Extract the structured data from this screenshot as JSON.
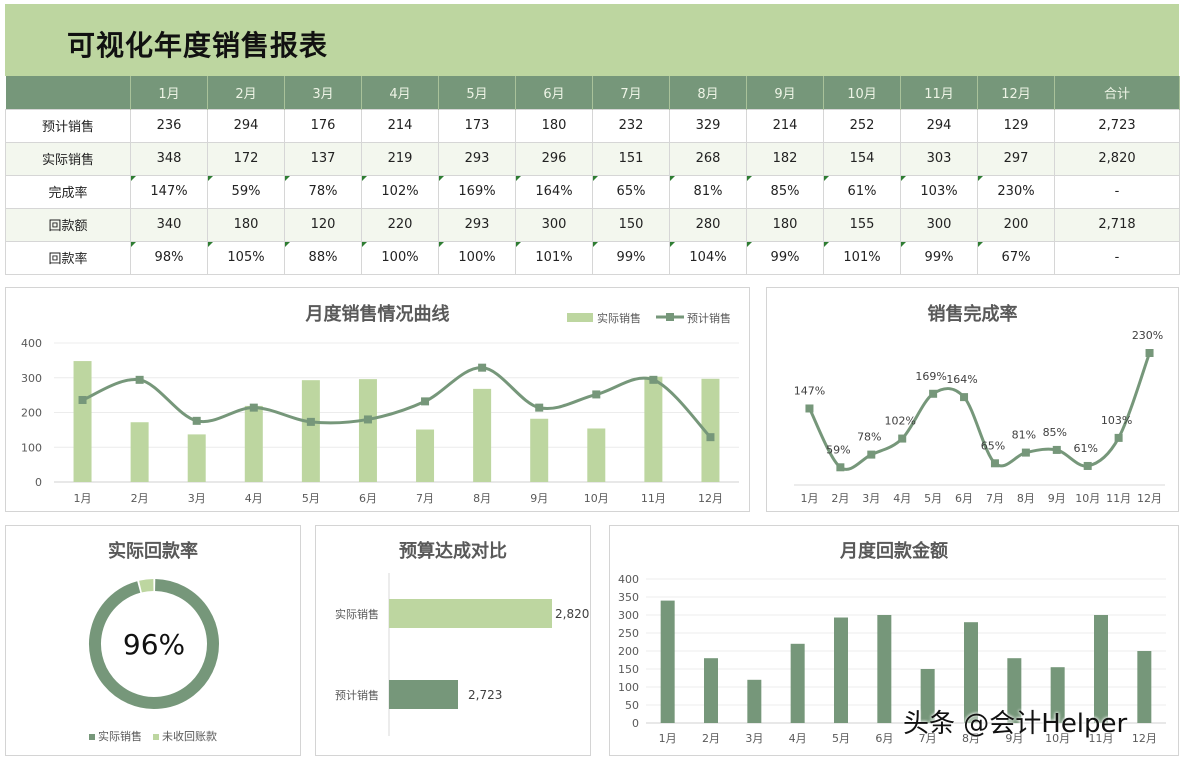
{
  "header": {
    "title": "可视化年度销售报表"
  },
  "table": {
    "columns": [
      "",
      "1月",
      "2月",
      "3月",
      "4月",
      "5月",
      "6月",
      "7月",
      "8月",
      "9月",
      "10月",
      "11月",
      "12月",
      "合计"
    ],
    "rows": [
      {
        "label": "预计销售",
        "values": [
          "236",
          "294",
          "176",
          "214",
          "173",
          "180",
          "232",
          "329",
          "214",
          "252",
          "294",
          "129"
        ],
        "total": "2,723",
        "flag": false
      },
      {
        "label": "实际销售",
        "values": [
          "348",
          "172",
          "137",
          "219",
          "293",
          "296",
          "151",
          "268",
          "182",
          "154",
          "303",
          "297"
        ],
        "total": "2,820",
        "flag": false
      },
      {
        "label": "完成率",
        "values": [
          "147%",
          "59%",
          "78%",
          "102%",
          "169%",
          "164%",
          "65%",
          "81%",
          "85%",
          "61%",
          "103%",
          "230%"
        ],
        "total": "-",
        "flag": true
      },
      {
        "label": "回款额",
        "values": [
          "340",
          "180",
          "120",
          "220",
          "293",
          "300",
          "150",
          "280",
          "180",
          "155",
          "300",
          "200"
        ],
        "total": "2,718",
        "flag": false
      },
      {
        "label": "回款率",
        "values": [
          "98%",
          "105%",
          "88%",
          "100%",
          "100%",
          "101%",
          "99%",
          "104%",
          "99%",
          "101%",
          "99%",
          "67%"
        ],
        "total": "-",
        "flag": true
      }
    ]
  },
  "colors": {
    "light_green": "#bdd6a0",
    "dark_green": "#76977a",
    "title_gray": "#595959"
  },
  "chart_data": [
    {
      "type": "bar+line",
      "title": "月度销售情况曲线",
      "categories": [
        "1月",
        "2月",
        "3月",
        "4月",
        "5月",
        "6月",
        "7月",
        "8月",
        "9月",
        "10月",
        "11月",
        "12月"
      ],
      "series": [
        {
          "name": "实际销售",
          "type": "bar",
          "color": "#bdd6a0",
          "values": [
            348,
            172,
            137,
            219,
            293,
            296,
            151,
            268,
            182,
            154,
            303,
            297
          ]
        },
        {
          "name": "预计销售",
          "type": "line",
          "color": "#76977a",
          "values": [
            236,
            294,
            176,
            214,
            173,
            180,
            232,
            329,
            214,
            252,
            294,
            129
          ]
        }
      ],
      "yticks": [
        0,
        100,
        200,
        300,
        400
      ],
      "ylim": [
        0,
        400
      ],
      "legend": [
        "实际销售",
        "预计销售"
      ],
      "legend_position": "top-right",
      "grid": true
    },
    {
      "type": "line",
      "title": "销售完成率",
      "categories": [
        "1月",
        "2月",
        "3月",
        "4月",
        "5月",
        "6月",
        "7月",
        "8月",
        "9月",
        "10月",
        "11月",
        "12月"
      ],
      "values": [
        147,
        59,
        78,
        102,
        169,
        164,
        65,
        81,
        85,
        61,
        103,
        230
      ],
      "labels": [
        "147%",
        "59%",
        "78%",
        "102%",
        "169%",
        "164%",
        "65%",
        "81%",
        "85%",
        "61%",
        "103%",
        "230%"
      ],
      "color": "#76977a"
    },
    {
      "type": "pie",
      "subtype": "doughnut",
      "title": "实际回款率",
      "center_label": "96%",
      "slices": [
        {
          "name": "实际销售",
          "value": 96,
          "color": "#76977a"
        },
        {
          "name": "未收回账款",
          "value": 4,
          "color": "#bdd6a0"
        }
      ],
      "legend": [
        "实际销售",
        "未收回账款"
      ],
      "legend_position": "bottom"
    },
    {
      "type": "bar",
      "orientation": "horizontal",
      "title": "预算达成对比",
      "categories": [
        "实际销售",
        "预计销售"
      ],
      "values": [
        2820,
        2723
      ],
      "value_labels": [
        "2,820",
        "2,723"
      ],
      "colors": [
        "#bdd6a0",
        "#76977a"
      ]
    },
    {
      "type": "bar",
      "title": "月度回款金额",
      "categories": [
        "1月",
        "2月",
        "3月",
        "4月",
        "5月",
        "6月",
        "7月",
        "8月",
        "9月",
        "10月",
        "11月",
        "12月"
      ],
      "values": [
        340,
        180,
        120,
        220,
        293,
        300,
        150,
        280,
        180,
        155,
        300,
        200
      ],
      "yticks": [
        0,
        50,
        100,
        150,
        200,
        250,
        300,
        350,
        400
      ],
      "ylim": [
        0,
        400
      ],
      "color": "#76977a",
      "grid": true
    }
  ],
  "watermark": "头条 @会计Helper"
}
